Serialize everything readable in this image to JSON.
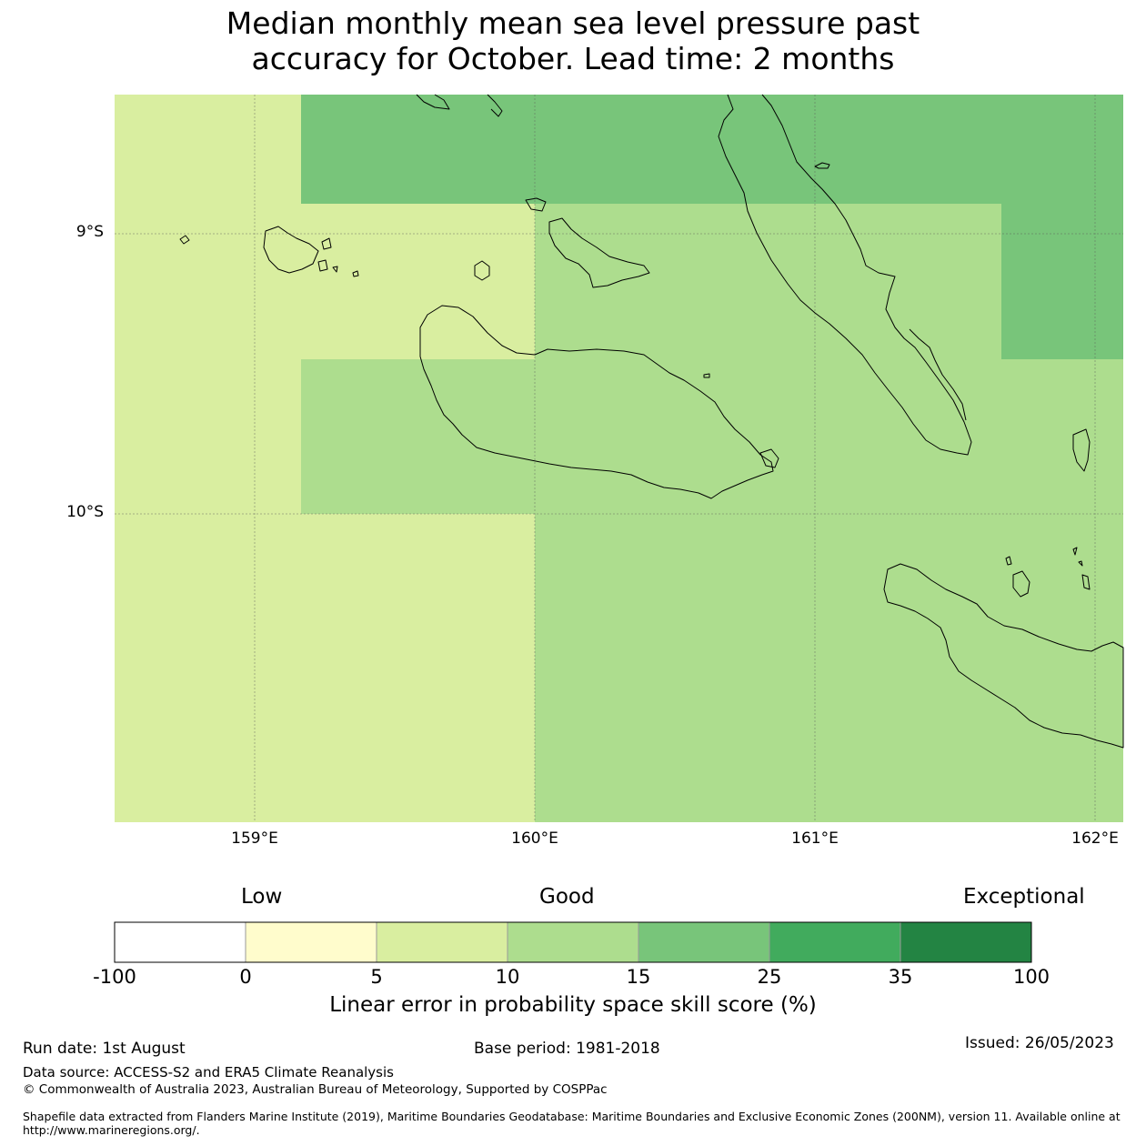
{
  "title_line1": "Median monthly mean sea level pressure past",
  "title_line2": "accuracy for October. Lead time: 2 months",
  "map": {
    "lat_ticks": [
      "9°S",
      "10°S"
    ],
    "lon_ticks": [
      "159°E",
      "160°E",
      "161°E",
      "162°E"
    ],
    "colors": {
      "band_0_5": "#fffccc",
      "band_5_10": "#d9eea0",
      "band_10_15": "#addd8e",
      "band_15_25": "#78c57a",
      "band_25_35": "#41ab5d",
      "band_35_100": "#238443",
      "coast": "#000000",
      "grid": "#5a5a5a"
    },
    "skill_cells": [
      {
        "region": "west",
        "band": "5-10"
      },
      {
        "region": "north-central",
        "band": "15-25"
      },
      {
        "region": "north-east",
        "band": "15-25"
      },
      {
        "region": "central",
        "band": "10-15"
      },
      {
        "region": "south-east",
        "band": "10-15"
      }
    ]
  },
  "colorbar": {
    "categories": [
      "Low",
      "Good",
      "Exceptional"
    ],
    "ticks": [
      "-100",
      "0",
      "5",
      "10",
      "15",
      "25",
      "35",
      "100"
    ],
    "colors": [
      "#ffffff",
      "#fffccc",
      "#d9eea0",
      "#addd8e",
      "#78c57a",
      "#41ab5d",
      "#238443"
    ],
    "label": "Linear error in probability space skill score (%)"
  },
  "footer": {
    "run_date": "Run date: 1st August",
    "base_period": "Base period: 1981-2018",
    "issued": "Issued: 26/05/2023",
    "data_source": "Data source: ACCESS-S2 and ERA5 Climate Reanalysis",
    "copyright": "© Commonwealth of Australia 2023, Australian Bureau of Meteorology, Supported by COSPPac",
    "shapefile_line1": "Shapefile data extracted from Flanders Marine Institute (2019), Maritime Boundaries Geodatabase: Maritime Boundaries and Exclusive Economic Zones (200NM), version 11. Available online at",
    "shapefile_line2": "http://www.marineregions.org/."
  }
}
